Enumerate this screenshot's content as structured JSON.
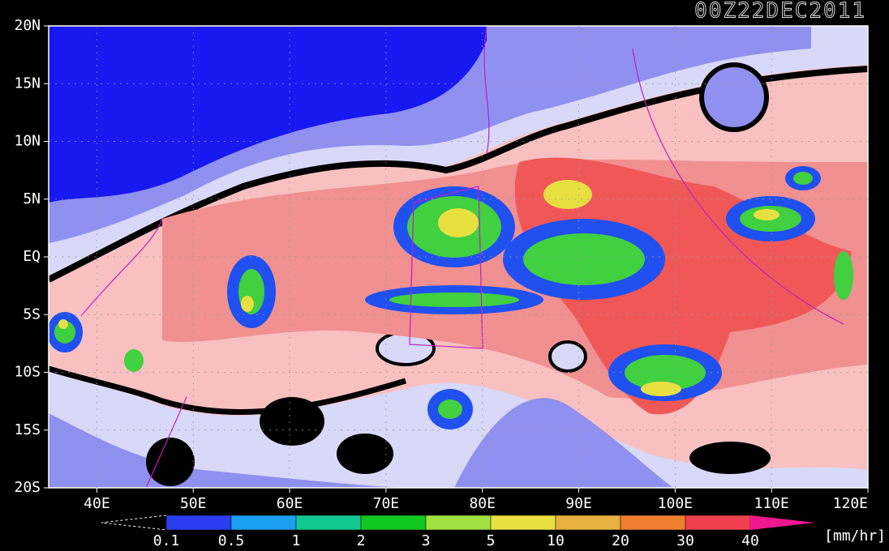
{
  "title": "00Z22DEC2011",
  "latitude_labels": [
    "20N",
    "15N",
    "10N",
    "5N",
    "EQ",
    "5S",
    "10S",
    "15S",
    "20S"
  ],
  "longitude_labels": [
    "40E",
    "50E",
    "60E",
    "70E",
    "80E",
    "90E",
    "100E",
    "110E",
    "120E"
  ],
  "colorbar": {
    "levels": [
      "0.1",
      "0.5",
      "1",
      "2",
      "3",
      "5",
      "10",
      "20",
      "30",
      "40"
    ],
    "colors": [
      "#2a3ef0",
      "#1aa0f0",
      "#10c890",
      "#10c820",
      "#a0e040",
      "#e8e040",
      "#e8b040",
      "#f08030",
      "#f04050",
      "#f01890"
    ],
    "unit": "[mm/hr]"
  }
}
